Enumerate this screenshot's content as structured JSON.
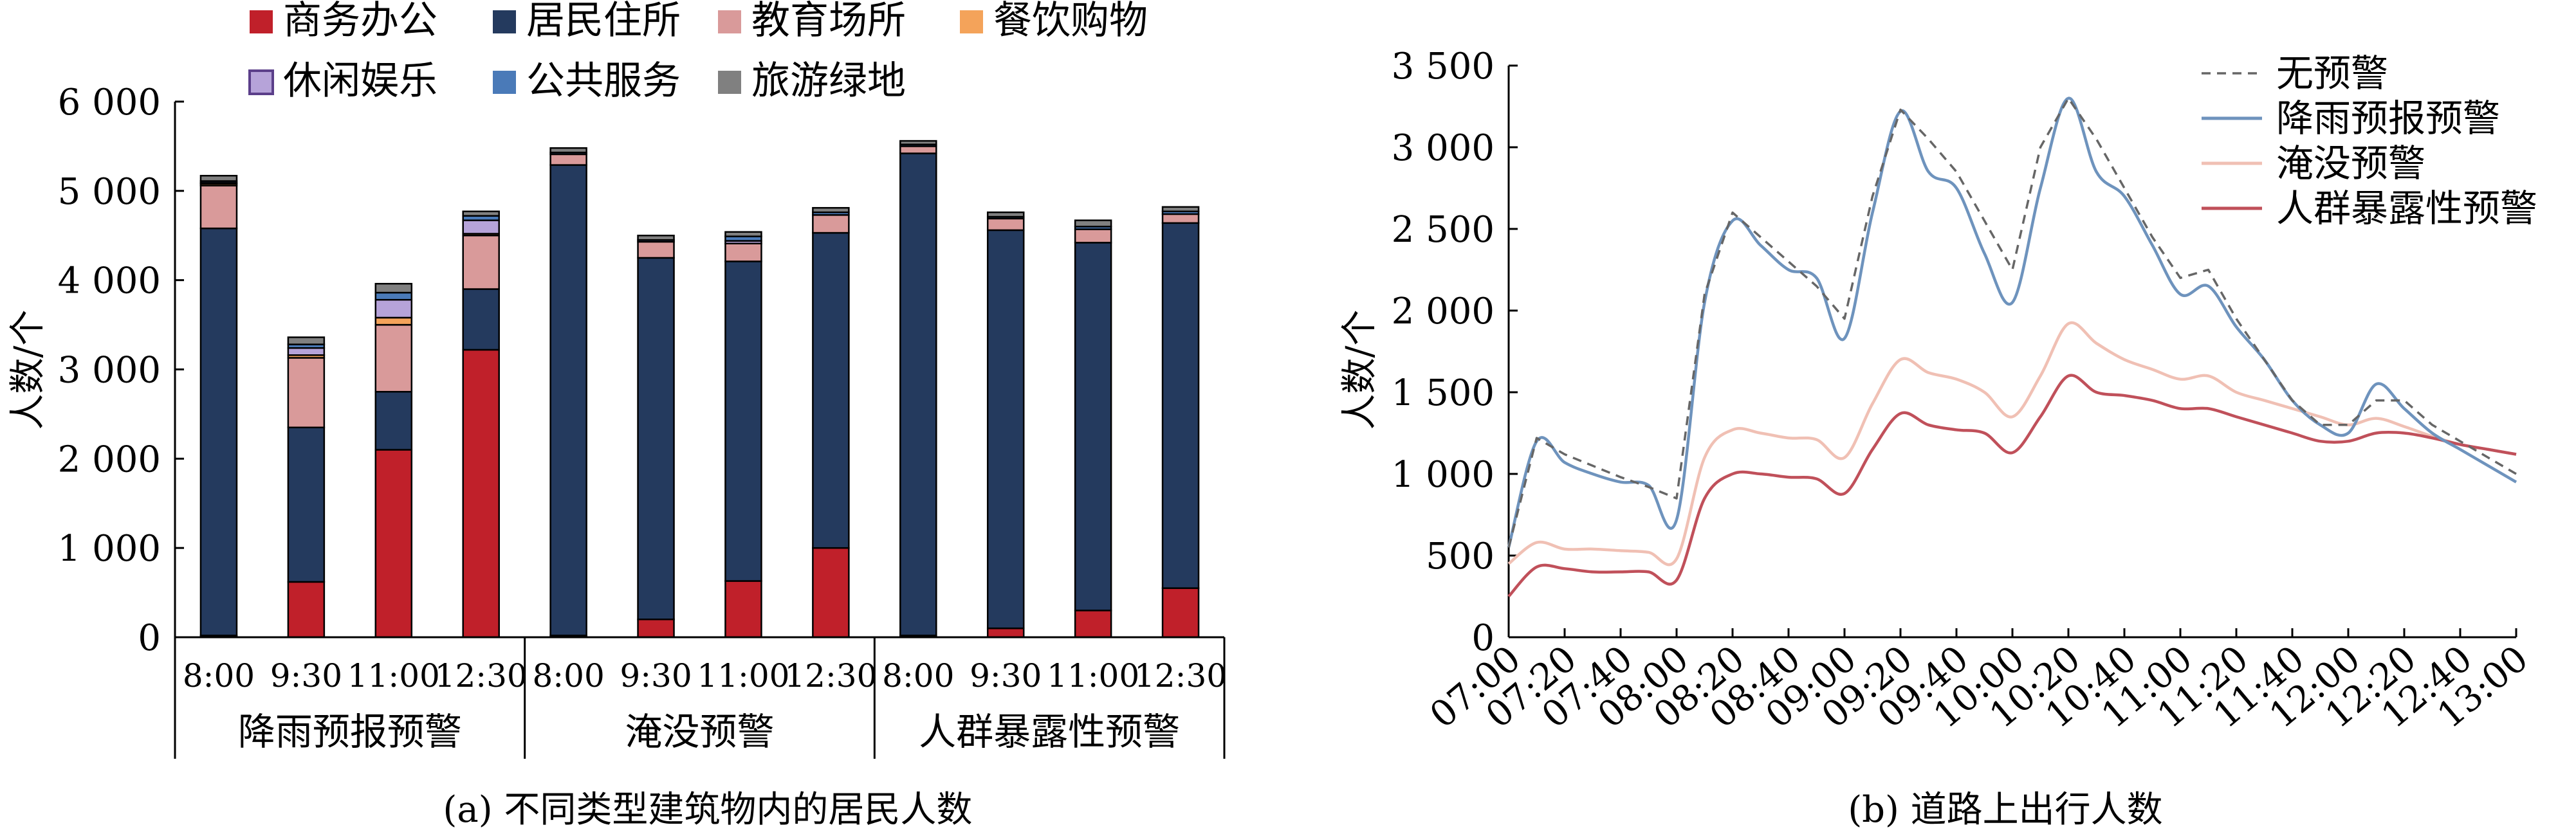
{
  "chart_data": [
    {
      "type": "bar",
      "stacked": true,
      "title": "(a) 不同类型建筑物内的居民人数",
      "ylabel": "人数/个",
      "ylim": [
        0,
        6000
      ],
      "yticks": [
        0,
        1000,
        2000,
        3000,
        4000,
        5000,
        6000
      ],
      "ytick_labels": [
        "0",
        "1 000",
        "2 000",
        "3 000",
        "4 000",
        "5 000",
        "6 000"
      ],
      "legend_position": "top",
      "groups": [
        "降雨预报预警",
        "淹没预警",
        "人群暴露性预警"
      ],
      "categories": [
        "8:00",
        "9:30",
        "11:00",
        "12:30",
        "8:00",
        "9:30",
        "11:00",
        "12:30",
        "8:00",
        "9:30",
        "11:00",
        "12:30"
      ],
      "series": [
        {
          "name": "商务办公",
          "color": "#c0202a",
          "values": [
            20,
            620,
            2100,
            3220,
            20,
            200,
            630,
            1000,
            20,
            100,
            300,
            550
          ]
        },
        {
          "name": "居民住所",
          "color": "#243a5e",
          "values": [
            4560,
            1730,
            650,
            680,
            5270,
            4050,
            3580,
            3530,
            5400,
            4460,
            4120,
            4090
          ]
        },
        {
          "name": "教育场所",
          "color": "#d99a9a",
          "values": [
            480,
            780,
            750,
            600,
            120,
            180,
            200,
            200,
            80,
            130,
            150,
            100
          ]
        },
        {
          "name": "餐饮购物",
          "color": "#f4a35a",
          "values": [
            20,
            30,
            80,
            20,
            0,
            0,
            0,
            0,
            0,
            0,
            0,
            0
          ]
        },
        {
          "name": "休闲娱乐",
          "color": "#b6a3d9",
          "values": [
            10,
            80,
            200,
            150,
            0,
            0,
            30,
            0,
            0,
            0,
            0,
            0
          ]
        },
        {
          "name": "公共服务",
          "color": "#4a7ab8",
          "values": [
            20,
            40,
            80,
            50,
            20,
            20,
            50,
            30,
            20,
            20,
            30,
            30
          ]
        },
        {
          "name": "旅游绿地",
          "color": "#808080",
          "values": [
            60,
            80,
            100,
            50,
            50,
            50,
            50,
            50,
            40,
            50,
            70,
            50
          ]
        }
      ]
    },
    {
      "type": "line",
      "title": "(b) 道路上出行人数",
      "ylabel": "人数/个",
      "ylim": [
        0,
        3500
      ],
      "yticks": [
        0,
        500,
        1000,
        1500,
        2000,
        2500,
        3000,
        3500
      ],
      "ytick_labels": [
        "0",
        "500",
        "1 000",
        "1 500",
        "2 000",
        "2 500",
        "3 000",
        "3 500"
      ],
      "x_tick_labels": [
        "07:00",
        "07:20",
        "07:40",
        "08:00",
        "08:20",
        "08:40",
        "09:00",
        "09:20",
        "09:40",
        "10:00",
        "10:20",
        "10:40",
        "11:00",
        "11:20",
        "11:40",
        "12:00",
        "12:20",
        "12:40",
        "13:00"
      ],
      "x": [
        "07:00",
        "07:10",
        "07:20",
        "07:30",
        "07:40",
        "07:50",
        "08:00",
        "08:10",
        "08:20",
        "08:30",
        "08:40",
        "08:50",
        "09:00",
        "09:10",
        "09:20",
        "09:30",
        "09:40",
        "09:50",
        "10:00",
        "10:10",
        "10:20",
        "10:30",
        "10:40",
        "10:50",
        "11:00",
        "11:10",
        "11:20",
        "11:30",
        "11:40",
        "11:50",
        "12:00",
        "12:10",
        "12:20",
        "12:30",
        "12:40",
        "12:50",
        "13:00"
      ],
      "legend_position": "top-right",
      "series": [
        {
          "name": "无预警",
          "color": "#666666",
          "dash": true,
          "values": [
            550,
            1220,
            1120,
            1050,
            980,
            920,
            850,
            2100,
            2600,
            2450,
            2300,
            2150,
            1950,
            2700,
            3230,
            3050,
            2850,
            2550,
            2250,
            3000,
            3300,
            3050,
            2750,
            2450,
            2200,
            2250,
            1950,
            1700,
            1450,
            1300,
            1300,
            1450,
            1450,
            1300,
            1200,
            1100,
            1000
          ]
        },
        {
          "name": "降雨预报预警",
          "color": "#6e93bd",
          "values": [
            550,
            1200,
            1070,
            1000,
            950,
            930,
            720,
            2050,
            2550,
            2400,
            2250,
            2200,
            1830,
            2600,
            3220,
            2850,
            2750,
            2350,
            2050,
            2750,
            3300,
            2850,
            2700,
            2400,
            2100,
            2150,
            1900,
            1700,
            1450,
            1300,
            1250,
            1550,
            1400,
            1250,
            1150,
            1050,
            950
          ]
        },
        {
          "name": "淹没预警",
          "color": "#f0c0b4",
          "values": [
            450,
            580,
            540,
            540,
            530,
            520,
            480,
            1100,
            1270,
            1250,
            1220,
            1210,
            1100,
            1430,
            1700,
            1620,
            1580,
            1500,
            1350,
            1600,
            1920,
            1800,
            1700,
            1640,
            1580,
            1600,
            1500,
            1450,
            1400,
            1350,
            1300,
            1340,
            1290,
            1230,
            1180,
            1150,
            1120
          ]
        },
        {
          "name": "人群暴露性预警",
          "color": "#c0505a",
          "values": [
            250,
            430,
            420,
            400,
            400,
            400,
            350,
            850,
            1000,
            1000,
            980,
            970,
            880,
            1150,
            1370,
            1300,
            1270,
            1250,
            1130,
            1350,
            1600,
            1500,
            1480,
            1450,
            1400,
            1400,
            1350,
            1300,
            1250,
            1200,
            1200,
            1250,
            1250,
            1220,
            1180,
            1150,
            1120
          ]
        }
      ]
    }
  ]
}
